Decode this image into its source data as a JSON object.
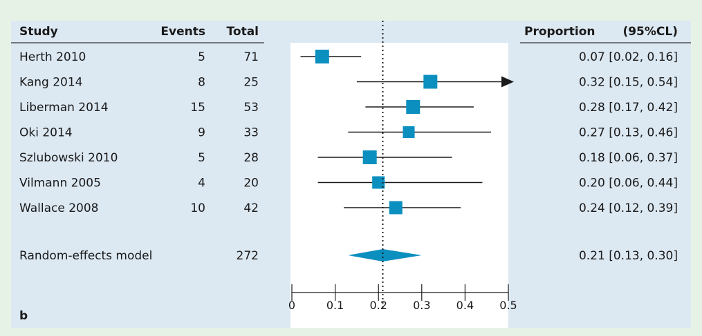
{
  "headers": {
    "study": "Study",
    "events": "Events",
    "total": "Total",
    "proportion": "Proportion",
    "ci": "(95%CL)"
  },
  "panel_label": "b",
  "colors": {
    "panel_background": "#e6f2e6",
    "table_background": "#dce8f2",
    "plot_background": "#ffffff",
    "marker": "#0b8fbf",
    "header_rule": "#333333"
  },
  "chart_data": {
    "type": "forest",
    "xlim": [
      0,
      0.5
    ],
    "xticks": [
      "0",
      "0.1",
      "0.2",
      "0.3",
      "0.4",
      "0.5"
    ],
    "reference_line": 0.21,
    "rows": [
      {
        "study": "Herth 2010",
        "events": "5",
        "total": "71",
        "estimate": 0.07,
        "lower": 0.02,
        "upper": 0.16,
        "ci_text": "0.07 [0.02, 0.16]",
        "weight": 1.0,
        "arrow": false
      },
      {
        "study": "Kang 2014",
        "events": "8",
        "total": "25",
        "estimate": 0.32,
        "lower": 0.15,
        "upper": 0.54,
        "ci_text": "0.32 [0.15, 0.54]",
        "weight": 1.0,
        "arrow": true
      },
      {
        "study": "Liberman 2014",
        "events": "15",
        "total": "53",
        "estimate": 0.28,
        "lower": 0.17,
        "upper": 0.42,
        "ci_text": "0.28 [0.17, 0.42]",
        "weight": 1.0,
        "arrow": false
      },
      {
        "study": "Oki 2014",
        "events": "9",
        "total": "33",
        "estimate": 0.27,
        "lower": 0.13,
        "upper": 0.46,
        "ci_text": "0.27 [0.13, 0.46]",
        "weight": 0.85,
        "arrow": false
      },
      {
        "study": "Szlubowski 2010",
        "events": "5",
        "total": "28",
        "estimate": 0.18,
        "lower": 0.06,
        "upper": 0.37,
        "ci_text": "0.18 [0.06, 0.37]",
        "weight": 1.0,
        "arrow": false
      },
      {
        "study": "Vilmann 2005",
        "events": "4",
        "total": "20",
        "estimate": 0.2,
        "lower": 0.06,
        "upper": 0.44,
        "ci_text": "0.20 [0.06, 0.44]",
        "weight": 0.9,
        "arrow": false
      },
      {
        "study": "Wallace 2008",
        "events": "10",
        "total": "42",
        "estimate": 0.24,
        "lower": 0.12,
        "upper": 0.39,
        "ci_text": "0.24 [0.12, 0.39]",
        "weight": 0.95,
        "arrow": false
      }
    ],
    "summary": {
      "label": "Random-effects model",
      "total": "272",
      "estimate": 0.21,
      "lower": 0.13,
      "upper": 0.3,
      "ci_text": "0.21 [0.13, 0.30]"
    }
  }
}
